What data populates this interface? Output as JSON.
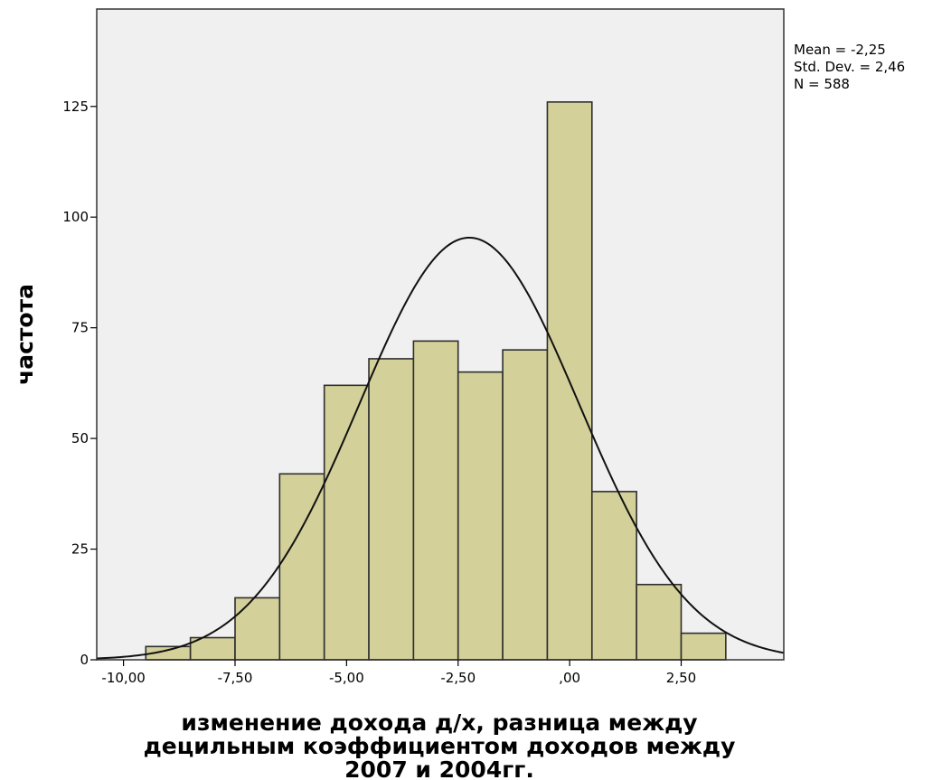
{
  "chart_data": {
    "type": "bar",
    "title": "",
    "xlabel_lines": [
      "изменение дохода д/х, разница между",
      "децильным коэффициентом доходов между",
      "2007 и 2004гг."
    ],
    "ylabel": "частота",
    "bin_width": 1,
    "bins": [
      {
        "start": -9.5,
        "end": -8.5,
        "value": 3
      },
      {
        "start": -8.5,
        "end": -7.5,
        "value": 5
      },
      {
        "start": -7.5,
        "end": -6.5,
        "value": 14
      },
      {
        "start": -6.5,
        "end": -5.5,
        "value": 42
      },
      {
        "start": -5.5,
        "end": -4.5,
        "value": 62
      },
      {
        "start": -4.5,
        "end": -3.5,
        "value": 68
      },
      {
        "start": -3.5,
        "end": -2.5,
        "value": 72
      },
      {
        "start": -2.5,
        "end": -1.5,
        "value": 65
      },
      {
        "start": -1.5,
        "end": -0.5,
        "value": 70
      },
      {
        "start": -0.5,
        "end": 0.5,
        "value": 126
      },
      {
        "start": 0.5,
        "end": 1.5,
        "value": 38
      },
      {
        "start": 1.5,
        "end": 2.5,
        "value": 17
      },
      {
        "start": 2.5,
        "end": 3.5,
        "value": 6
      }
    ],
    "xlim": [
      -10.6,
      4.8
    ],
    "ylim": [
      0,
      147
    ],
    "xticks": [
      {
        "value": -10,
        "label": "-10,00"
      },
      {
        "value": -7.5,
        "label": "-7,50"
      },
      {
        "value": -5,
        "label": "-5,00"
      },
      {
        "value": -2.5,
        "label": "-2,50"
      },
      {
        "value": 0,
        "label": ",00"
      },
      {
        "value": 2.5,
        "label": "2,50"
      }
    ],
    "yticks": [
      {
        "value": 0,
        "label": "0"
      },
      {
        "value": 25,
        "label": "25"
      },
      {
        "value": 50,
        "label": "50"
      },
      {
        "value": 75,
        "label": "75"
      },
      {
        "value": 100,
        "label": "100"
      },
      {
        "value": 125,
        "label": "125"
      }
    ],
    "normal_curve": {
      "mean": -2.25,
      "sd": 2.46,
      "n": 588
    },
    "stats_lines": [
      "Mean = -2,25",
      "Std. Dev. = 2,46",
      "N = 588"
    ],
    "colors": {
      "bar_fill": "#d4d09a",
      "bar_stroke": "#2e2e2e",
      "plot_background": "#f0f0f0",
      "curve": "#111111",
      "frame": "#333333"
    },
    "grid": false,
    "legend": "right"
  }
}
